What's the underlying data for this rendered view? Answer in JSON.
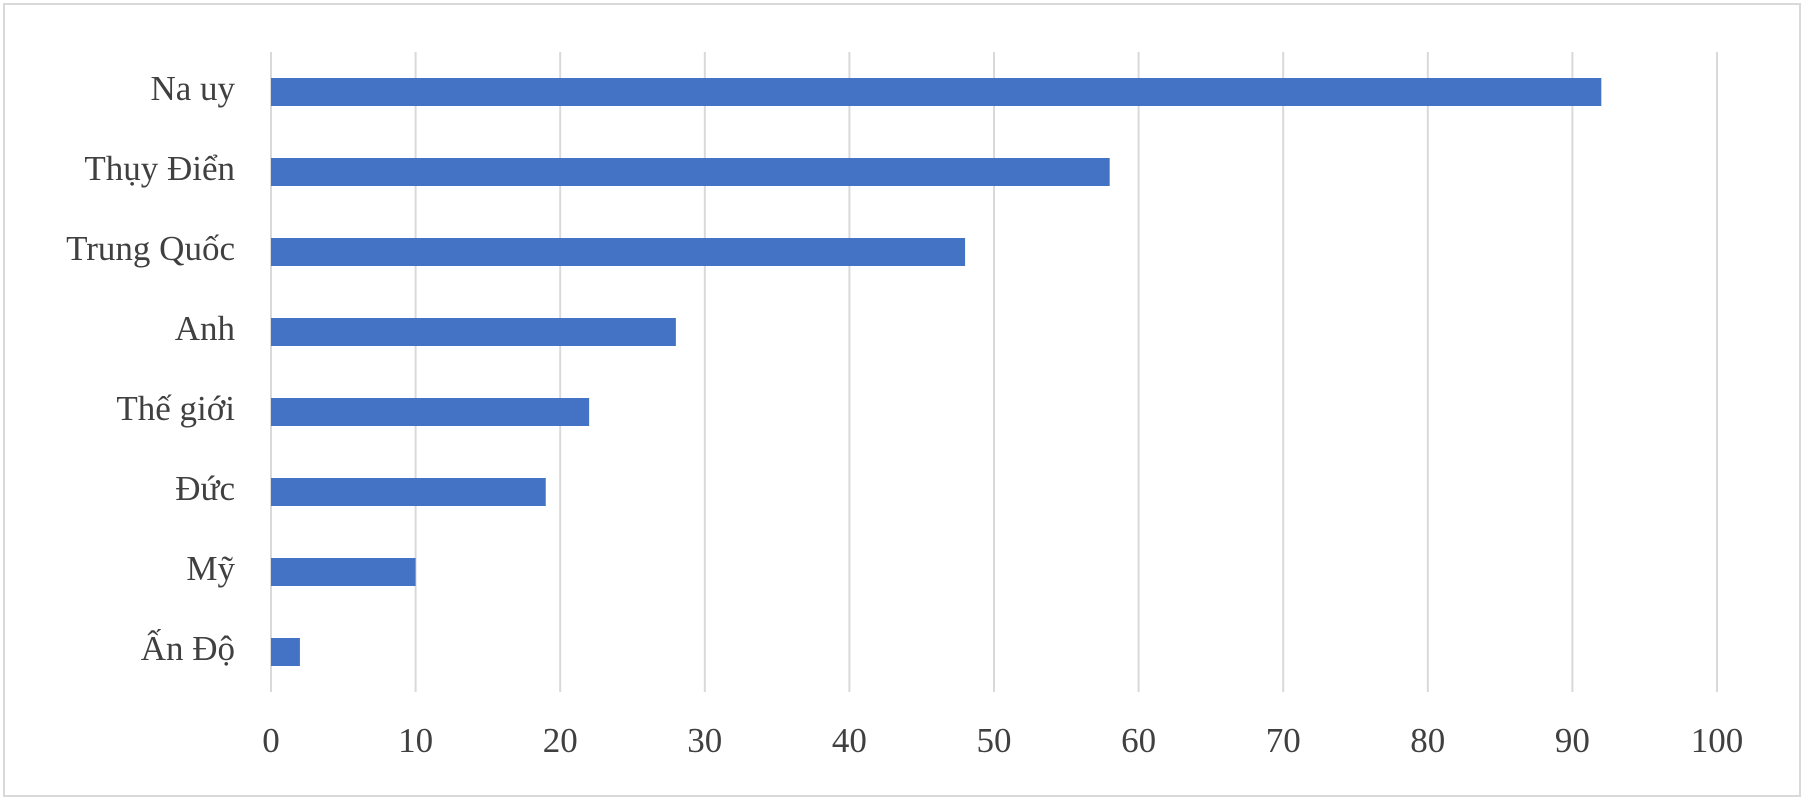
{
  "chart_data": {
    "type": "bar",
    "orientation": "horizontal",
    "categories": [
      "Na uy",
      "Thụy Điển",
      "Trung Quốc",
      "Anh",
      "Thế giới",
      "Đức",
      "Mỹ",
      "Ấn Độ"
    ],
    "values": [
      92,
      58,
      48,
      28,
      22,
      19,
      10,
      2
    ],
    "color": "#4472c4",
    "xlim": [
      0,
      100
    ],
    "xticks": [
      0,
      10,
      20,
      30,
      40,
      50,
      60,
      70,
      80,
      90,
      100
    ],
    "grid": true
  }
}
